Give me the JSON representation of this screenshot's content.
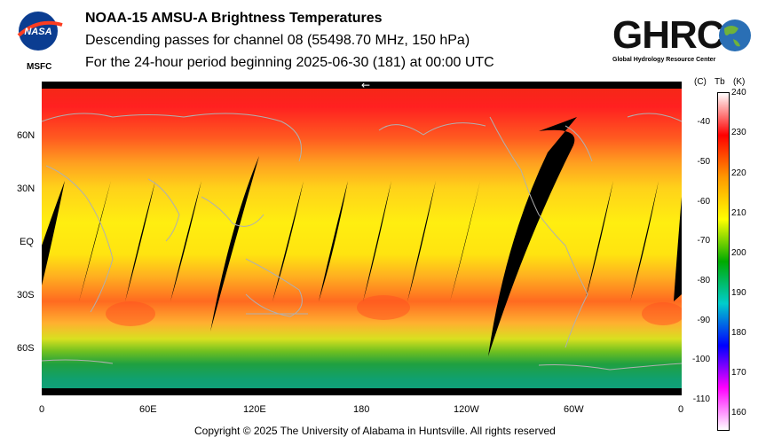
{
  "header": {
    "title": "NOAA-15 AMSU-A Brightness Temperatures",
    "line2": "Descending passes for channel 08 (55498.70 MHz, 150 hPa)",
    "line3": "For the 24-hour period beginning 2025-06-30 (181) at 00:00 UTC"
  },
  "logos": {
    "nasa": "NASA",
    "msfc": "MSFC",
    "ghrc": "GHRC",
    "ghrc_full": "Global Hydrology Resource Center"
  },
  "map": {
    "lat_labels": [
      "60N",
      "30N",
      "EQ",
      "30S",
      "60S"
    ],
    "lon_labels": [
      "0",
      "60E",
      "120E",
      "180",
      "120W",
      "60W",
      "0"
    ],
    "arrow_symbol": "←"
  },
  "colorbar": {
    "header_c": "(C)",
    "header_tb": "Tb",
    "header_k": "(K)",
    "celsius_ticks": [
      "-40",
      "-50",
      "-60",
      "-70",
      "-80",
      "-90",
      "-100",
      "-110"
    ],
    "kelvin_ticks": [
      "240",
      "230",
      "220",
      "210",
      "200",
      "190",
      "180",
      "170",
      "160"
    ],
    "kelvin_range": [
      155,
      240
    ],
    "stops": [
      "#ffffff",
      "#ff0000",
      "#ff9900",
      "#ffff00",
      "#00aa00",
      "#00cccc",
      "#0000ff",
      "#ff00ff",
      "#ffffff"
    ]
  },
  "footer": {
    "copyright": "Copyright © 2025 The University of Alabama in Huntsville.  All rights reserved"
  }
}
